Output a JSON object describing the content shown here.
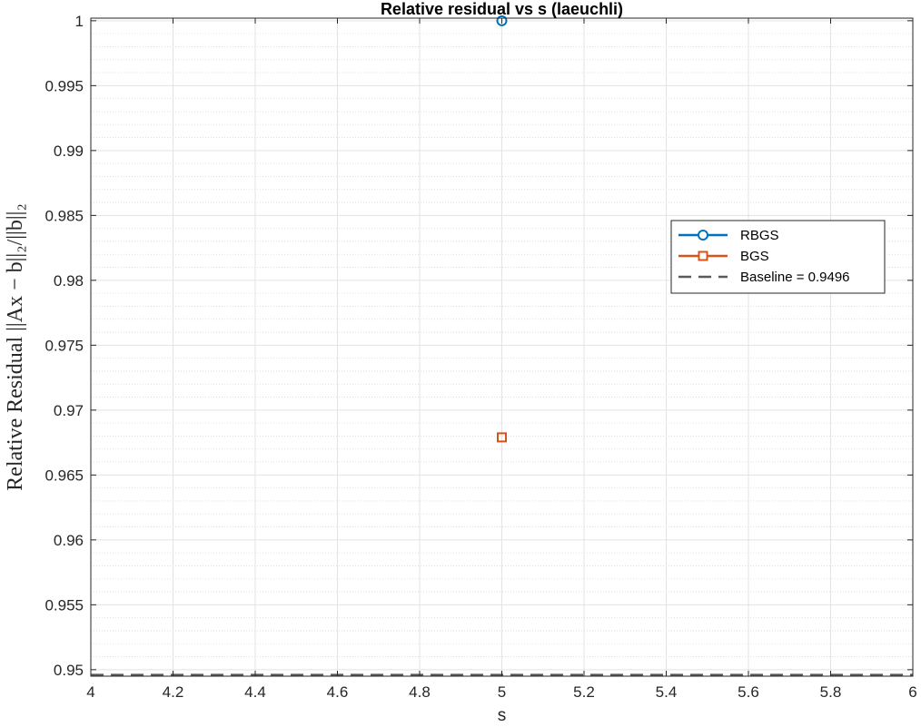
{
  "chart_data": {
    "type": "line",
    "title": "Relative residual vs s (laeuchli)",
    "xlabel": "s",
    "ylabel": "Relative Residual ||Ax − b||₂/||b||₂",
    "xlim": [
      4,
      6
    ],
    "ylim": [
      0.9495,
      1.0002
    ],
    "xticks": [
      4,
      4.2,
      4.4,
      4.6,
      4.8,
      5,
      5.2,
      5.4,
      5.6,
      5.8,
      6
    ],
    "xtick_labels": [
      "4",
      "4.2",
      "4.4",
      "4.6",
      "4.8",
      "5",
      "5.2",
      "5.4",
      "5.6",
      "5.8",
      "6"
    ],
    "yticks": [
      0.95,
      0.955,
      0.96,
      0.965,
      0.97,
      0.975,
      0.98,
      0.985,
      0.99,
      0.995,
      1
    ],
    "ytick_labels": [
      "0.95",
      "0.955",
      "0.96",
      "0.965",
      "0.97",
      "0.975",
      "0.98",
      "0.985",
      "0.99",
      "0.995",
      "1"
    ],
    "grid": true,
    "minor_grid": true,
    "legend_position": "right",
    "series": [
      {
        "name": "RBGS",
        "x": [
          5
        ],
        "y": [
          1.0
        ],
        "color": "#0072BD",
        "marker": "circle",
        "line_style": "solid"
      },
      {
        "name": "BGS",
        "x": [
          5
        ],
        "y": [
          0.9679
        ],
        "color": "#D95319",
        "marker": "square",
        "line_style": "solid"
      },
      {
        "name": "Baseline = 0.9496",
        "x": [
          4,
          6
        ],
        "y": [
          0.9496,
          0.9496
        ],
        "color": "#595959",
        "marker": "none",
        "line_style": "dashed"
      }
    ]
  }
}
